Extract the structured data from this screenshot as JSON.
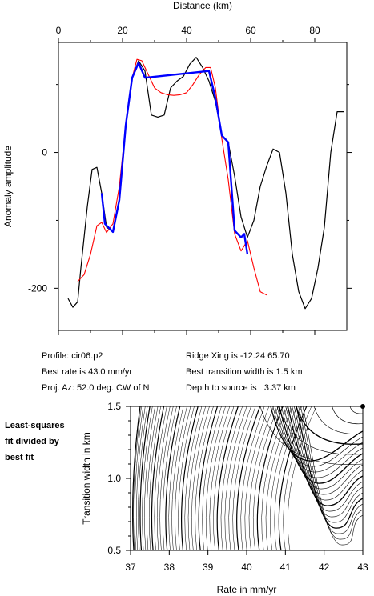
{
  "chart_data": [
    {
      "type": "line",
      "title": "",
      "xlabel": "Distance (km)",
      "ylabel": "Anomaly amplitude",
      "xlim": [
        0,
        90
      ],
      "ylim": [
        -262,
        162
      ],
      "xticks": [
        "0",
        "20",
        "40",
        "60",
        "80"
      ],
      "yticks": [
        "0",
        "-200"
      ],
      "xtick_values": [
        0,
        20,
        40,
        60,
        80
      ],
      "ytick_values": [
        0,
        -200
      ],
      "x_axis_position": "top",
      "series": [
        {
          "color": "#000000",
          "x": [
            3,
            4.5,
            6,
            7,
            9,
            10.5,
            12,
            13.5,
            15,
            17,
            19,
            21,
            23,
            25,
            27,
            29,
            31,
            33,
            35,
            37,
            39,
            41,
            43,
            45,
            47,
            49,
            51,
            53,
            55,
            57,
            59,
            61,
            63,
            65,
            67,
            69,
            71,
            73,
            75,
            77,
            79,
            81,
            83,
            85,
            87,
            89
          ],
          "y": [
            -215,
            -228,
            -220,
            -170,
            -80,
            -25,
            -22,
            -60,
            -110,
            -117,
            -70,
            40,
            110,
            135,
            120,
            55,
            52,
            55,
            95,
            105,
            112,
            130,
            140,
            125,
            105,
            75,
            25,
            15,
            -35,
            -95,
            -125,
            -100,
            -50,
            -20,
            5,
            0,
            -60,
            -150,
            -205,
            -230,
            -215,
            -170,
            -110,
            0,
            60,
            60
          ]
        },
        {
          "color": "#ff0000",
          "x": [
            6,
            8,
            10,
            12,
            13.5,
            15,
            17,
            19,
            21,
            23,
            24.5,
            26,
            28,
            30,
            32,
            34,
            36,
            38,
            40,
            42,
            44,
            46,
            47.5,
            49,
            51,
            53,
            55,
            57,
            59,
            61,
            63,
            65
          ],
          "y": [
            -190,
            -180,
            -150,
            -108,
            -103,
            -118,
            -105,
            -50,
            40,
            110,
            137,
            135,
            115,
            95,
            88,
            85,
            84,
            85,
            88,
            100,
            115,
            125,
            125,
            95,
            20,
            -40,
            -120,
            -145,
            -130,
            -170,
            -205,
            -210
          ]
        },
        {
          "color": "#0000ff",
          "x": [
            13.5,
            14.5,
            15.5,
            17,
            19,
            21,
            23,
            25,
            27,
            47,
            49,
            51,
            53,
            55,
            57,
            58,
            59
          ],
          "y": [
            -60,
            -105,
            -110,
            -117,
            -70,
            40,
            110,
            132,
            110,
            120,
            80,
            25,
            15,
            -115,
            -125,
            -120,
            -150
          ]
        }
      ]
    },
    {
      "type": "contour",
      "xlabel": "Rate in mm/yr",
      "ylabel": "Transition width in km",
      "xlim": [
        37,
        43
      ],
      "ylim": [
        0.5,
        1.5
      ],
      "xticks": [
        "37",
        "38",
        "39",
        "40",
        "41",
        "42",
        "43"
      ],
      "yticks": [
        "0.5",
        "1.0",
        "1.5"
      ],
      "xtick_values": [
        37,
        38,
        39,
        40,
        41,
        42,
        43
      ],
      "ytick_values": [
        0.5,
        1.0,
        1.5
      ],
      "best_fit_marker": [
        43.0,
        1.5
      ]
    }
  ],
  "info": {
    "profile": "Profile: cir06.p2",
    "best_rate": "Best rate is 43.0 mm/yr",
    "proj_az": "Proj. Az: 52.0 deg. CW of N",
    "ridge_xing": "Ridge Xing is -12.24 65.70",
    "best_width": "Best transition width is 1.5 km",
    "depth": "Depth to source is   3.37 km"
  },
  "side_note": {
    "line1": "Least-squares",
    "line2": "fit divided by",
    "line3": "best fit"
  }
}
